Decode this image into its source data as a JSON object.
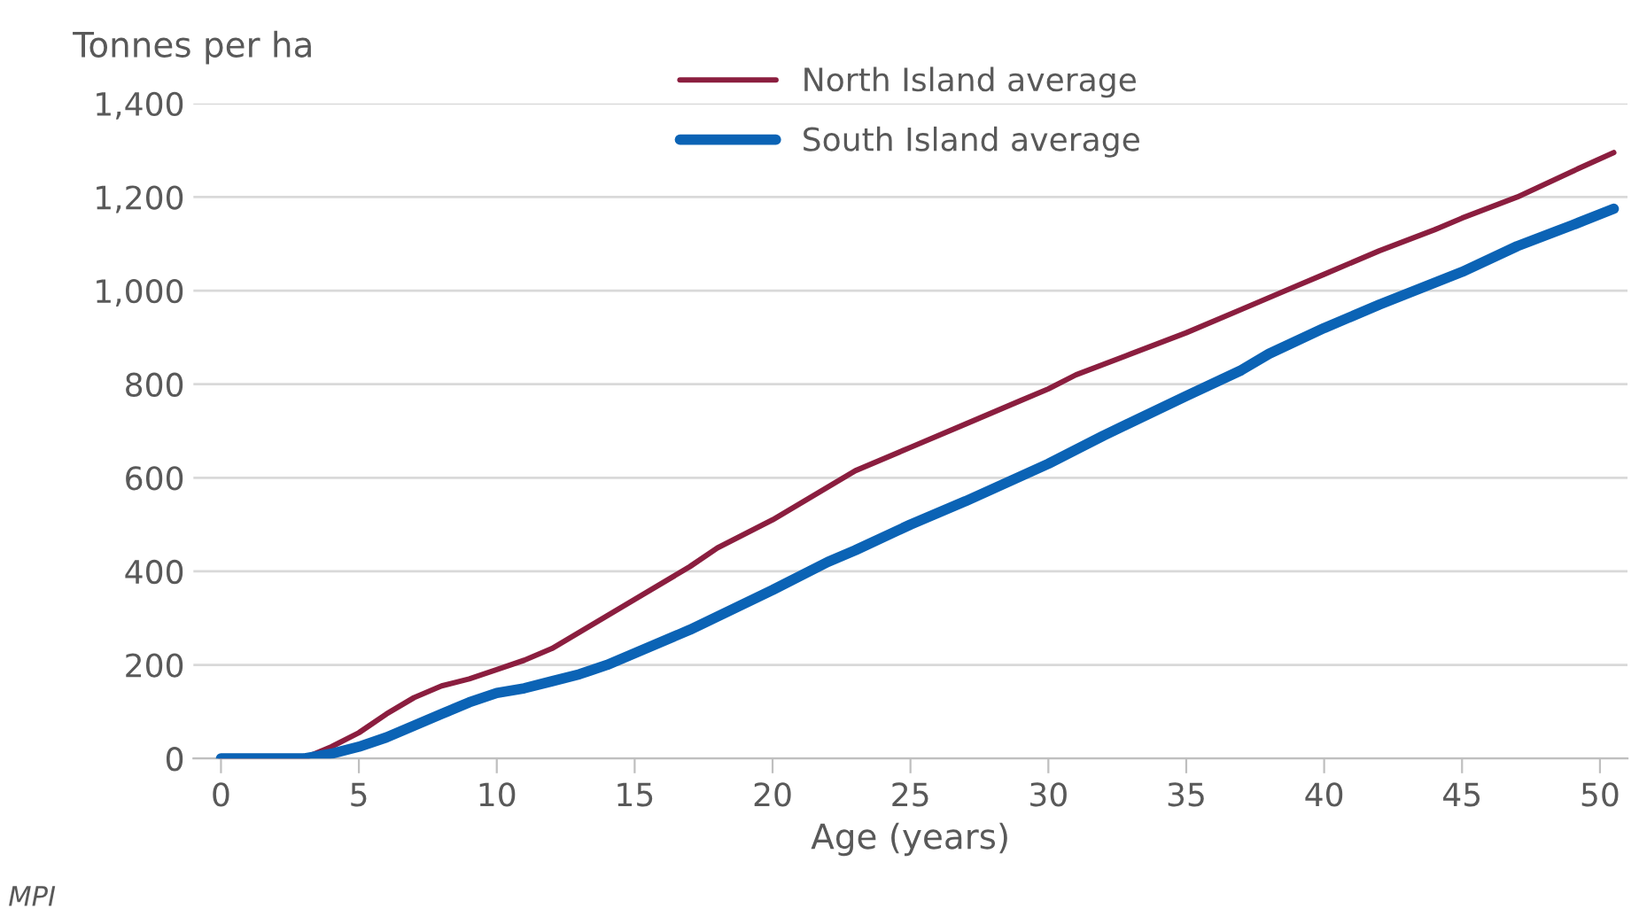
{
  "chart_data": {
    "type": "line",
    "ylabel": "Tonnes per ha",
    "xlabel": "Age (years)",
    "xlim": [
      -1,
      51
    ],
    "xticks": [
      0,
      5,
      10,
      15,
      20,
      25,
      30,
      35,
      40,
      45,
      50
    ],
    "ylim": [
      0,
      1400
    ],
    "yticks": [
      0,
      {
        "value": 200,
        "label": "200"
      },
      {
        "value": 400,
        "label": "400"
      },
      {
        "value": 600,
        "label": "600"
      },
      {
        "value": 800,
        "label": "800"
      },
      {
        "value": 1000,
        "label": "1,000"
      },
      {
        "value": 1200,
        "label": "1,200"
      },
      {
        "value": 1400,
        "label": "1,400"
      }
    ],
    "grid": "y",
    "legend": "top",
    "marker": "none",
    "line_style": "solid",
    "annotations": [
      "MPI"
    ],
    "series": [
      {
        "name": "North Island average",
        "color": "#8b1e3f",
        "x": [
          0,
          3,
          4,
          5,
          6,
          7,
          8,
          9,
          10,
          11,
          12,
          13,
          14,
          15,
          17,
          18,
          20,
          22,
          23,
          25,
          27,
          29,
          30,
          31,
          33,
          35,
          37,
          38,
          39,
          40,
          42,
          44,
          45,
          47,
          49,
          50.5
        ],
        "values": [
          0,
          0,
          25,
          55,
          95,
          130,
          155,
          170,
          190,
          210,
          235,
          270,
          305,
          340,
          410,
          450,
          510,
          580,
          615,
          665,
          715,
          765,
          790,
          820,
          865,
          910,
          960,
          985,
          1010,
          1035,
          1085,
          1130,
          1155,
          1200,
          1255,
          1295
        ]
      },
      {
        "name": "South Island average",
        "color": "#0b63b5",
        "x": [
          0,
          3,
          4,
          5,
          6,
          7,
          8,
          9,
          10,
          11,
          12,
          13,
          14,
          15,
          17,
          20,
          22,
          23,
          25,
          27,
          30,
          32,
          35,
          37,
          38,
          40,
          42,
          45,
          47,
          49,
          50.5
        ],
        "values": [
          0,
          0,
          10,
          25,
          45,
          70,
          95,
          120,
          140,
          150,
          165,
          180,
          200,
          225,
          275,
          360,
          420,
          445,
          500,
          550,
          630,
          690,
          775,
          830,
          865,
          920,
          970,
          1040,
          1095,
          1140,
          1175
        ]
      }
    ]
  }
}
